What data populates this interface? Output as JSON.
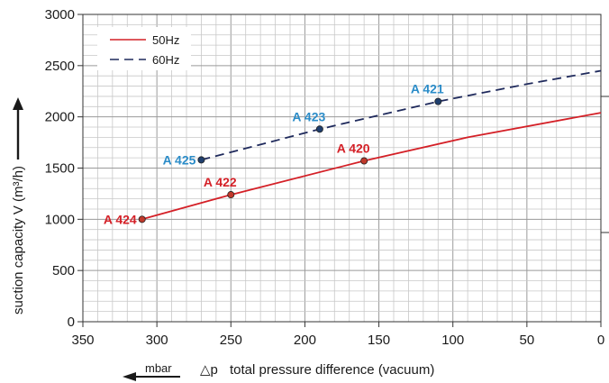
{
  "chart_data": {
    "type": "line",
    "xlabel": "total pressure difference (vacuum)",
    "xlabel_symbol": "△p",
    "x_unit": "mbar",
    "ylabel": "suction capacity V (m³/h)",
    "xlim": [
      350,
      0
    ],
    "ylim": [
      0,
      3000
    ],
    "x_reversed": true,
    "x_ticks": [
      350,
      300,
      250,
      200,
      150,
      100,
      50,
      0
    ],
    "y_ticks": [
      0,
      500,
      1000,
      1500,
      2000,
      2500,
      3000
    ],
    "grid": true,
    "legend_position": "top-left",
    "series": [
      {
        "name": "50Hz",
        "color": "#d42027",
        "dash": "solid",
        "x": [
          310,
          250,
          160,
          90,
          0
        ],
        "y": [
          1000,
          1240,
          1570,
          1800,
          2040
        ]
      },
      {
        "name": "60Hz",
        "color": "#1f2a5c",
        "dash": "dashed",
        "x": [
          270,
          190,
          110,
          50,
          0
        ],
        "y": [
          1580,
          1880,
          2150,
          2320,
          2450
        ]
      }
    ],
    "points": [
      {
        "label": "A 424",
        "x": 310,
        "y": 1000,
        "color": "#d42027",
        "anchor": "left"
      },
      {
        "label": "A 422",
        "x": 250,
        "y": 1240,
        "color": "#d42027",
        "anchor": "above"
      },
      {
        "label": "A 420",
        "x": 160,
        "y": 1570,
        "color": "#d42027",
        "anchor": "above"
      },
      {
        "label": "A 425",
        "x": 270,
        "y": 1580,
        "color": "#2b8cc8",
        "anchor": "left"
      },
      {
        "label": "A 423",
        "x": 190,
        "y": 1880,
        "color": "#2b8cc8",
        "anchor": "above"
      },
      {
        "label": "A 421",
        "x": 110,
        "y": 2150,
        "color": "#2b8cc8",
        "anchor": "above"
      }
    ]
  }
}
